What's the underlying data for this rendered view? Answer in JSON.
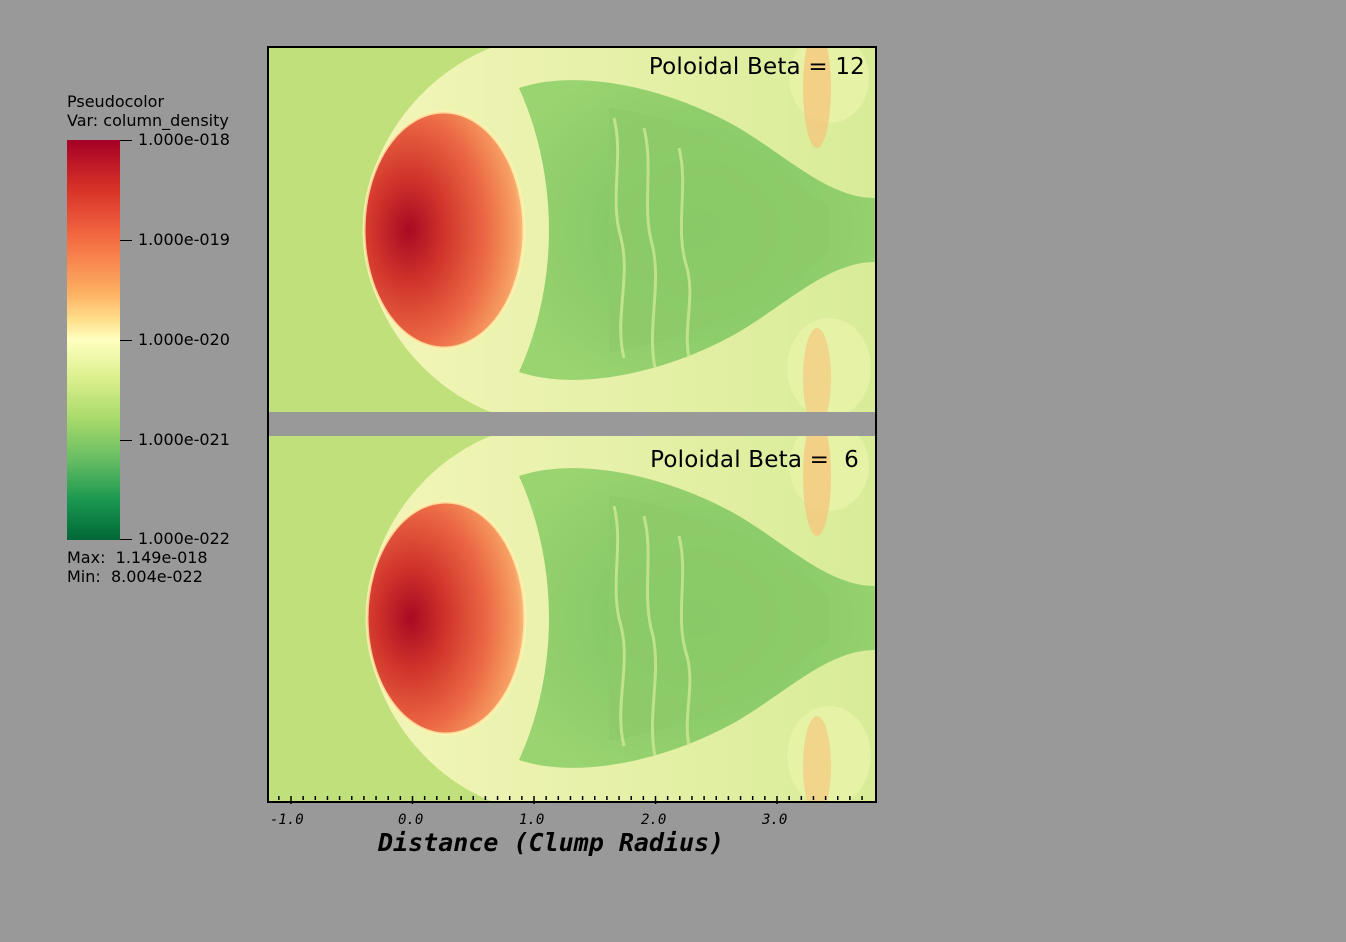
{
  "legend": {
    "title": "Pseudocolor",
    "var_label": "Var: column_density",
    "ticks": [
      "1.000e-018",
      "1.000e-019",
      "1.000e-020",
      "1.000e-021",
      "1.000e-022"
    ],
    "max_label": "Max:  1.149e-018",
    "min_label": "Min:  8.004e-022",
    "colormap": "RdYlGn"
  },
  "panels": [
    {
      "title": "Poloidal Beta = 12"
    },
    {
      "title": "Poloidal Beta =  6"
    }
  ],
  "x_axis": {
    "label": "Distance (Clump Radius)",
    "tick_labels": [
      "-1.0",
      "0.0",
      "1.0",
      "2.0",
      "3.0"
    ]
  },
  "colors": {
    "background": "#999999",
    "clump_core": "#b40f26",
    "ambient": "#bfe07a",
    "wake": "#86c866"
  }
}
